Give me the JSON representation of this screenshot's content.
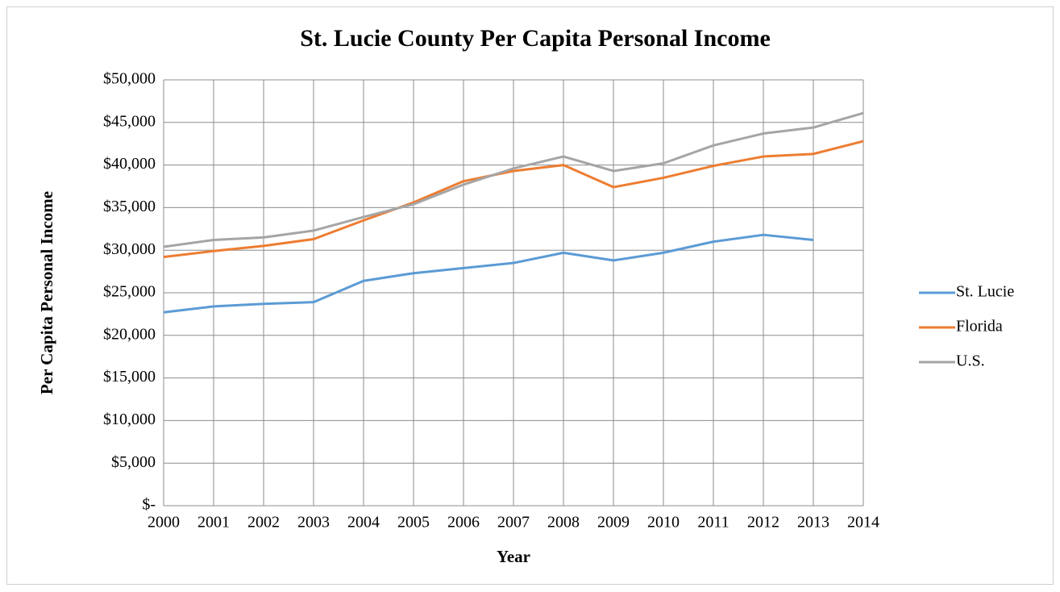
{
  "chart_data": {
    "type": "line",
    "title": "St. Lucie County Per Capita Personal Income",
    "x_label": "Year",
    "y_label": "Per Capita Personal Income",
    "x": [
      2000,
      2001,
      2002,
      2003,
      2004,
      2005,
      2006,
      2007,
      2008,
      2009,
      2010,
      2011,
      2012,
      2013,
      2014
    ],
    "series": [
      {
        "name": "St. Lucie",
        "color": "#5b9bd5",
        "values": [
          22700,
          23400,
          23700,
          23900,
          26400,
          27300,
          27900,
          28500,
          29700,
          28800,
          29700,
          31000,
          31800,
          31200,
          null
        ]
      },
      {
        "name": "Florida",
        "color": "#ed7d31",
        "values": [
          29200,
          29900,
          30500,
          31300,
          33500,
          35600,
          38100,
          39300,
          40000,
          37400,
          38500,
          39900,
          41000,
          41300,
          42800
        ]
      },
      {
        "name": "U.S.",
        "color": "#a5a5a5",
        "values": [
          30400,
          31200,
          31500,
          32300,
          33900,
          35400,
          37700,
          39600,
          41000,
          39300,
          40200,
          42300,
          43700,
          44400,
          46100
        ]
      }
    ],
    "xlim": [
      2000,
      2014
    ],
    "xticks": [
      2000,
      2001,
      2002,
      2003,
      2004,
      2005,
      2006,
      2007,
      2008,
      2009,
      2010,
      2011,
      2012,
      2013,
      2014
    ],
    "ylim": [
      0,
      50000
    ],
    "yticks": [
      {
        "value": 0,
        "label": "$-"
      },
      {
        "value": 5000,
        "label": "$5,000"
      },
      {
        "value": 10000,
        "label": "$10,000"
      },
      {
        "value": 15000,
        "label": "$15,000"
      },
      {
        "value": 20000,
        "label": "$20,000"
      },
      {
        "value": 25000,
        "label": "$25,000"
      },
      {
        "value": 30000,
        "label": "$30,000"
      },
      {
        "value": 35000,
        "label": "$35,000"
      },
      {
        "value": 40000,
        "label": "$40,000"
      },
      {
        "value": 45000,
        "label": "$45,000"
      },
      {
        "value": 50000,
        "label": "$50,000"
      }
    ],
    "grid": true,
    "legend": "right"
  }
}
